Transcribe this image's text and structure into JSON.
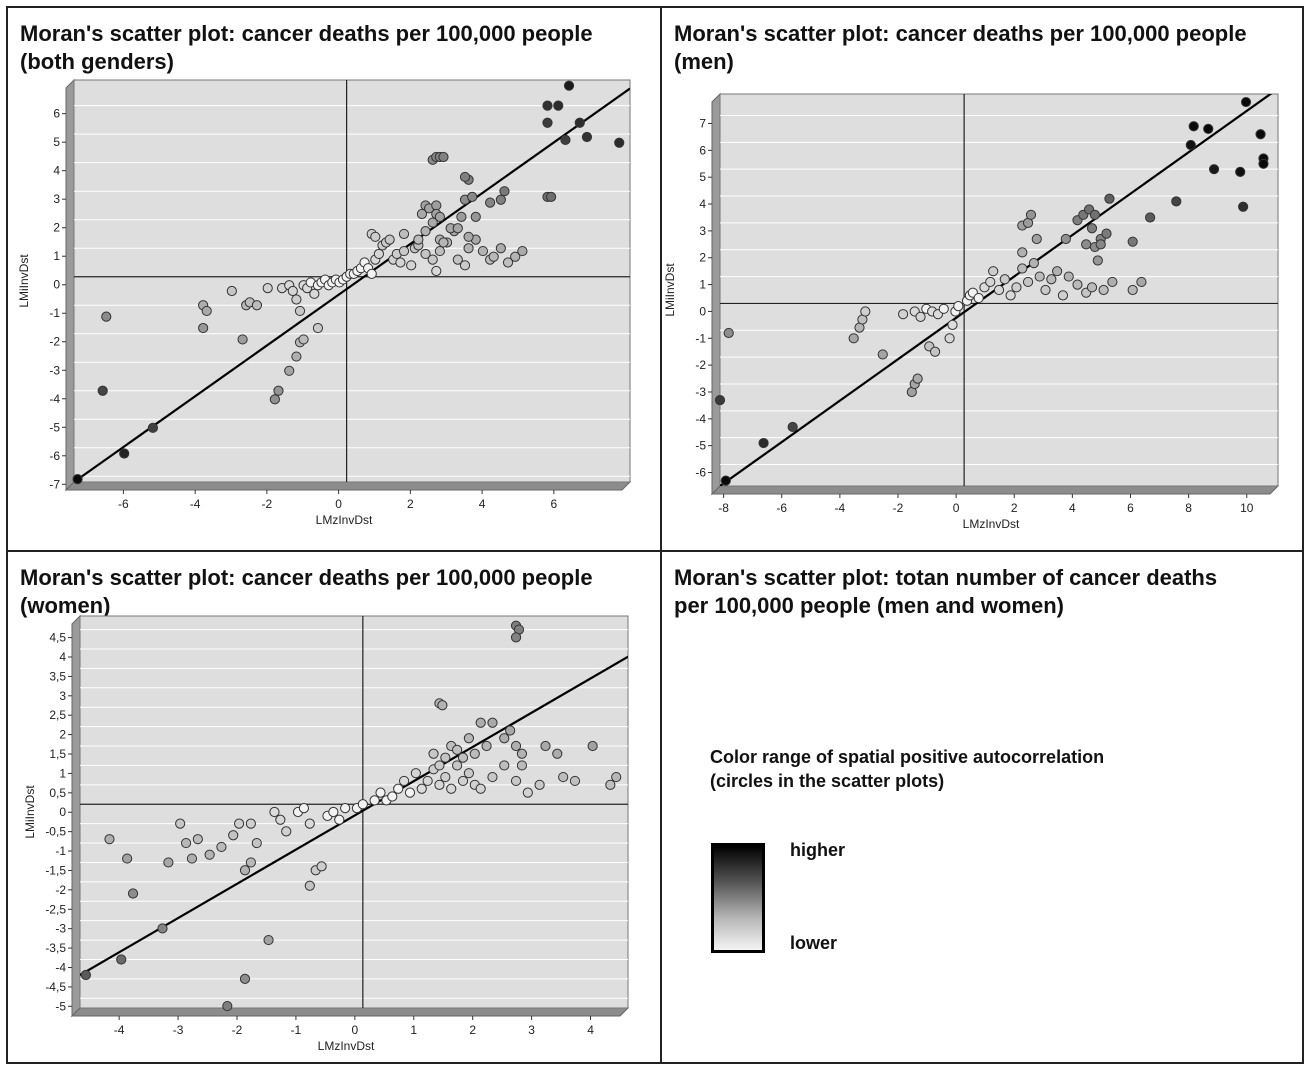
{
  "chart_data": [
    {
      "type": "scatter",
      "title": "Moran's scatter plot: cancer deaths per 100,000 people\n(both genders)",
      "xlabel": "LMzInvDst",
      "ylabel": "LMiInvDst",
      "xlim": [
        -7.6,
        7.9
      ],
      "ylim": [
        -7.2,
        6.9
      ],
      "xticks": [
        "-6",
        "-4",
        "-2",
        "0",
        "2",
        "4",
        "6"
      ],
      "xtick_values": [
        -6,
        -4,
        -2,
        0,
        2,
        4,
        6
      ],
      "yticks": [
        "6",
        "5",
        "4",
        "3",
        "2",
        "1",
        "0",
        "-1",
        "-2",
        "-3",
        "-4",
        "-5",
        "-6",
        "-7"
      ],
      "ytick_values": [
        6,
        5,
        4,
        3,
        2,
        1,
        0,
        -1,
        -2,
        -3,
        -4,
        -5,
        -6,
        -7
      ],
      "regression_line": [
        [
          -7.6,
          -7.2
        ],
        [
          7.9,
          6.6
        ]
      ],
      "points": [
        [
          -7.5,
          -7.1
        ],
        [
          -6.7,
          -1.4
        ],
        [
          -6.8,
          -4.0
        ],
        [
          -6.2,
          -6.2
        ],
        [
          -5.4,
          -5.3
        ],
        [
          -4.0,
          -1.0
        ],
        [
          -3.9,
          -1.2
        ],
        [
          -4.0,
          -1.8
        ],
        [
          -3.2,
          -0.5
        ],
        [
          -2.9,
          -2.2
        ],
        [
          -2.8,
          -1.0
        ],
        [
          -2.7,
          -0.9
        ],
        [
          -2.5,
          -1.0
        ],
        [
          -2.2,
          -0.4
        ],
        [
          -2.0,
          -4.3
        ],
        [
          -1.9,
          -4.0
        ],
        [
          -1.6,
          -3.3
        ],
        [
          -1.4,
          -2.8
        ],
        [
          -1.3,
          -2.3
        ],
        [
          -1.2,
          -2.2
        ],
        [
          -0.8,
          -1.8
        ],
        [
          -1.8,
          -0.4
        ],
        [
          -1.6,
          -0.3
        ],
        [
          -1.5,
          -0.5
        ],
        [
          -1.4,
          -0.8
        ],
        [
          -1.3,
          -1.2
        ],
        [
          -1.2,
          -0.3
        ],
        [
          -1.1,
          -0.4
        ],
        [
          -1.0,
          -0.2
        ],
        [
          -0.9,
          -0.6
        ],
        [
          -0.8,
          -0.3
        ],
        [
          -0.7,
          -0.2
        ],
        [
          -0.6,
          -0.1
        ],
        [
          -0.5,
          -0.3
        ],
        [
          -0.4,
          -0.2
        ],
        [
          -0.3,
          -0.1
        ],
        [
          -0.2,
          -0.2
        ],
        [
          -0.1,
          -0.1
        ],
        [
          0.0,
          0.0
        ],
        [
          0.1,
          0.1
        ],
        [
          0.2,
          0.1
        ],
        [
          0.3,
          0.2
        ],
        [
          0.4,
          0.3
        ],
        [
          0.5,
          0.5
        ],
        [
          0.6,
          0.3
        ],
        [
          0.7,
          0.1
        ],
        [
          0.8,
          0.6
        ],
        [
          0.9,
          0.8
        ],
        [
          1.0,
          1.1
        ],
        [
          1.1,
          1.2
        ],
        [
          1.2,
          1.3
        ],
        [
          1.3,
          0.6
        ],
        [
          1.4,
          0.8
        ],
        [
          1.5,
          0.5
        ],
        [
          1.6,
          0.9
        ],
        [
          1.8,
          0.4
        ],
        [
          1.9,
          1.0
        ],
        [
          2.0,
          1.1
        ],
        [
          2.2,
          0.8
        ],
        [
          2.4,
          0.6
        ],
        [
          2.5,
          0.2
        ],
        [
          2.6,
          0.9
        ],
        [
          2.8,
          1.2
        ],
        [
          3.0,
          1.6
        ],
        [
          3.1,
          0.6
        ],
        [
          3.3,
          0.4
        ],
        [
          3.4,
          1.0
        ],
        [
          3.6,
          1.3
        ],
        [
          3.8,
          0.9
        ],
        [
          4.0,
          0.6
        ],
        [
          4.1,
          0.7
        ],
        [
          4.3,
          1.0
        ],
        [
          4.5,
          0.5
        ],
        [
          4.7,
          0.7
        ],
        [
          4.9,
          0.9
        ],
        [
          0.7,
          1.5
        ],
        [
          0.8,
          1.4
        ],
        [
          1.6,
          1.5
        ],
        [
          2.0,
          1.3
        ],
        [
          2.2,
          1.6
        ],
        [
          2.4,
          1.9
        ],
        [
          2.6,
          1.3
        ],
        [
          2.7,
          1.2
        ],
        [
          2.9,
          1.7
        ],
        [
          3.1,
          1.7
        ],
        [
          3.4,
          1.4
        ],
        [
          2.1,
          2.2
        ],
        [
          2.2,
          2.5
        ],
        [
          2.3,
          2.4
        ],
        [
          2.5,
          2.5
        ],
        [
          2.5,
          2.2
        ],
        [
          2.6,
          2.1
        ],
        [
          3.2,
          2.1
        ],
        [
          3.3,
          2.7
        ],
        [
          3.5,
          2.8
        ],
        [
          3.6,
          2.1
        ],
        [
          4.0,
          2.6
        ],
        [
          4.3,
          2.7
        ],
        [
          4.4,
          3.0
        ],
        [
          3.4,
          3.4
        ],
        [
          3.3,
          3.5
        ],
        [
          2.4,
          4.1
        ],
        [
          2.5,
          4.2
        ],
        [
          2.6,
          4.2
        ],
        [
          2.7,
          4.2
        ],
        [
          5.6,
          2.8
        ],
        [
          5.7,
          2.8
        ],
        [
          5.6,
          5.4
        ],
        [
          5.6,
          6.0
        ],
        [
          5.9,
          6.0
        ],
        [
          6.1,
          4.8
        ],
        [
          6.2,
          6.7
        ],
        [
          6.5,
          5.4
        ],
        [
          6.7,
          4.9
        ],
        [
          7.6,
          4.7
        ]
      ]
    },
    {
      "type": "scatter",
      "title": "Moran's scatter plot: cancer deaths per 100,000 people\n(men)",
      "xlabel": "LMzInvDst",
      "ylabel": "LMiInvDst",
      "xlim": [
        -8.4,
        10.8
      ],
      "ylim": [
        -6.8,
        7.8
      ],
      "xticks": [
        "-8",
        "-6",
        "-4",
        "-2",
        "0",
        "2",
        "4",
        "6",
        "8",
        "10"
      ],
      "xtick_values": [
        -8,
        -6,
        -4,
        -2,
        0,
        2,
        4,
        6,
        8,
        10
      ],
      "yticks": [
        "7",
        "6",
        "5",
        "4",
        "3",
        "2",
        "1",
        "0",
        "-1",
        "-2",
        "-3",
        "-4",
        "-5",
        "-6"
      ],
      "ytick_values": [
        7,
        6,
        5,
        4,
        3,
        2,
        1,
        0,
        -1,
        -2,
        -3,
        -4,
        -5,
        -6
      ],
      "regression_line": [
        [
          -8.4,
          -6.8
        ],
        [
          10.8,
          8.0
        ]
      ],
      "points": [
        [
          -8.2,
          -6.6
        ],
        [
          -8.4,
          -3.6
        ],
        [
          -8.1,
          -1.1
        ],
        [
          -6.9,
          -5.2
        ],
        [
          -5.9,
          -4.6
        ],
        [
          -3.8,
          -1.3
        ],
        [
          -3.6,
          -0.9
        ],
        [
          -3.5,
          -0.6
        ],
        [
          -3.4,
          -0.3
        ],
        [
          -2.8,
          -1.9
        ],
        [
          -2.1,
          -0.4
        ],
        [
          -1.8,
          -3.3
        ],
        [
          -1.7,
          -3.0
        ],
        [
          -1.6,
          -2.8
        ],
        [
          -1.2,
          -1.6
        ],
        [
          -1.0,
          -1.8
        ],
        [
          -1.7,
          -0.3
        ],
        [
          -1.5,
          -0.5
        ],
        [
          -1.3,
          -0.2
        ],
        [
          -1.1,
          -0.3
        ],
        [
          -0.9,
          -0.4
        ],
        [
          -0.7,
          -0.2
        ],
        [
          -0.5,
          -1.3
        ],
        [
          -0.4,
          -0.8
        ],
        [
          -0.3,
          -0.3
        ],
        [
          -0.2,
          -0.1
        ],
        [
          0.1,
          0.1
        ],
        [
          0.2,
          0.3
        ],
        [
          0.3,
          0.4
        ],
        [
          0.5,
          0.2
        ],
        [
          0.7,
          0.6
        ],
        [
          0.9,
          0.8
        ],
        [
          1.0,
          1.2
        ],
        [
          1.2,
          0.5
        ],
        [
          1.4,
          0.9
        ],
        [
          1.6,
          0.3
        ],
        [
          1.8,
          0.6
        ],
        [
          2.0,
          1.3
        ],
        [
          2.2,
          0.8
        ],
        [
          2.4,
          1.5
        ],
        [
          2.6,
          1.0
        ],
        [
          2.8,
          0.5
        ],
        [
          3.0,
          0.9
        ],
        [
          3.2,
          1.2
        ],
        [
          3.4,
          0.3
        ],
        [
          3.6,
          1.0
        ],
        [
          3.9,
          0.7
        ],
        [
          4.2,
          0.4
        ],
        [
          4.4,
          0.6
        ],
        [
          4.6,
          1.6
        ],
        [
          4.8,
          0.5
        ],
        [
          5.1,
          0.8
        ],
        [
          5.8,
          0.5
        ],
        [
          6.1,
          0.8
        ],
        [
          2.0,
          1.9
        ],
        [
          2.5,
          2.4
        ],
        [
          3.5,
          2.4
        ],
        [
          4.2,
          2.2
        ],
        [
          4.4,
          2.8
        ],
        [
          4.7,
          2.4
        ],
        [
          4.9,
          2.6
        ],
        [
          2.0,
          2.9
        ],
        [
          2.2,
          3.0
        ],
        [
          2.3,
          3.3
        ],
        [
          3.9,
          3.1
        ],
        [
          4.1,
          3.3
        ],
        [
          4.3,
          3.5
        ],
        [
          4.5,
          3.3
        ],
        [
          5.0,
          3.9
        ],
        [
          4.5,
          2.1
        ],
        [
          4.7,
          2.2
        ],
        [
          5.8,
          2.3
        ],
        [
          6.4,
          3.2
        ],
        [
          7.3,
          3.8
        ],
        [
          7.8,
          5.9
        ],
        [
          7.9,
          6.6
        ],
        [
          8.4,
          6.5
        ],
        [
          8.6,
          5.0
        ],
        [
          9.5,
          4.9
        ],
        [
          9.6,
          3.6
        ],
        [
          9.7,
          7.5
        ],
        [
          10.2,
          6.3
        ],
        [
          10.3,
          5.4
        ],
        [
          10.3,
          5.2
        ]
      ]
    },
    {
      "type": "scatter",
      "title": "Moran's scatter plot: cancer deaths per 100,000 people\n(women)",
      "xlabel": "LMzInvDst",
      "ylabel": "LMiInvDst",
      "xlim": [
        -4.8,
        4.5
      ],
      "ylim": [
        -5.25,
        4.85
      ],
      "xticks": [
        "-4",
        "-3",
        "-2",
        "-1",
        "0",
        "1",
        "2",
        "3",
        "4"
      ],
      "xtick_values": [
        -4,
        -3,
        -2,
        -1,
        0,
        1,
        2,
        3,
        4
      ],
      "yticks": [
        "4,5",
        "4",
        "3,5",
        "3",
        "2,5",
        "2",
        "1,5",
        "1",
        "0,5",
        "0",
        "-0,5",
        "-1",
        "-1,5",
        "-2",
        "-2,5",
        "-3",
        "-3,5",
        "-4",
        "-4,5",
        "-5"
      ],
      "ytick_values": [
        4.5,
        4,
        3.5,
        3,
        2.5,
        2,
        1.5,
        1,
        0.5,
        0,
        -0.5,
        -1,
        -1.5,
        -2,
        -2.5,
        -3,
        -3.5,
        -4,
        -4.5,
        -5
      ],
      "regression_line": [
        [
          -4.8,
          -4.4
        ],
        [
          4.5,
          3.8
        ]
      ],
      "points": [
        [
          -4.7,
          -4.4
        ],
        [
          -4.3,
          -0.9
        ],
        [
          -4.1,
          -4.0
        ],
        [
          -4.0,
          -1.4
        ],
        [
          -3.9,
          -2.3
        ],
        [
          -3.4,
          -3.2
        ],
        [
          -3.3,
          -1.5
        ],
        [
          -3.1,
          -0.5
        ],
        [
          -3.0,
          -1.0
        ],
        [
          -2.9,
          -1.4
        ],
        [
          -2.8,
          -0.9
        ],
        [
          -2.6,
          -1.3
        ],
        [
          -2.4,
          -1.1
        ],
        [
          -2.3,
          -5.2
        ],
        [
          -2.2,
          -0.8
        ],
        [
          -2.1,
          -0.5
        ],
        [
          -2.0,
          -4.5
        ],
        [
          -2.0,
          -1.7
        ],
        [
          -1.9,
          -1.5
        ],
        [
          -1.9,
          -0.5
        ],
        [
          -1.8,
          -1.0
        ],
        [
          -1.6,
          -3.5
        ],
        [
          -1.5,
          -0.2
        ],
        [
          -1.4,
          -0.4
        ],
        [
          -1.3,
          -0.7
        ],
        [
          -1.1,
          -0.2
        ],
        [
          -1.0,
          -0.1
        ],
        [
          -0.9,
          -0.5
        ],
        [
          -0.9,
          -2.1
        ],
        [
          -0.8,
          -1.7
        ],
        [
          -0.7,
          -1.6
        ],
        [
          -0.6,
          -0.3
        ],
        [
          -0.5,
          -0.2
        ],
        [
          -0.4,
          -0.4
        ],
        [
          -0.3,
          -0.1
        ],
        [
          -0.1,
          -0.1
        ],
        [
          0.0,
          0.0
        ],
        [
          0.2,
          0.1
        ],
        [
          0.3,
          0.3
        ],
        [
          0.4,
          0.1
        ],
        [
          0.5,
          0.2
        ],
        [
          0.6,
          0.4
        ],
        [
          0.7,
          0.6
        ],
        [
          0.8,
          0.3
        ],
        [
          0.9,
          0.8
        ],
        [
          1.0,
          0.4
        ],
        [
          1.1,
          0.6
        ],
        [
          1.2,
          0.9
        ],
        [
          1.3,
          0.5
        ],
        [
          1.4,
          0.7
        ],
        [
          1.5,
          0.4
        ],
        [
          1.6,
          1.0
        ],
        [
          1.7,
          0.6
        ],
        [
          1.8,
          0.8
        ],
        [
          1.9,
          0.5
        ],
        [
          2.0,
          0.4
        ],
        [
          2.2,
          0.7
        ],
        [
          2.4,
          1.0
        ],
        [
          2.6,
          0.6
        ],
        [
          2.7,
          1.0
        ],
        [
          2.8,
          0.3
        ],
        [
          3.0,
          0.5
        ],
        [
          3.4,
          0.7
        ],
        [
          3.6,
          0.6
        ],
        [
          4.2,
          0.5
        ],
        [
          4.3,
          0.7
        ],
        [
          1.2,
          1.3
        ],
        [
          1.3,
          1.0
        ],
        [
          1.4,
          1.2
        ],
        [
          1.5,
          1.5
        ],
        [
          1.6,
          1.4
        ],
        [
          1.7,
          1.2
        ],
        [
          1.8,
          1.7
        ],
        [
          1.9,
          1.3
        ],
        [
          2.0,
          2.1
        ],
        [
          2.1,
          1.5
        ],
        [
          2.2,
          2.1
        ],
        [
          2.4,
          1.7
        ],
        [
          2.5,
          1.9
        ],
        [
          2.6,
          1.5
        ],
        [
          2.7,
          1.3
        ],
        [
          3.1,
          1.5
        ],
        [
          3.3,
          1.3
        ],
        [
          3.9,
          1.5
        ],
        [
          1.3,
          2.6
        ],
        [
          1.35,
          2.55
        ],
        [
          2.6,
          4.6
        ],
        [
          2.65,
          4.5
        ],
        [
          2.6,
          4.3
        ]
      ]
    }
  ],
  "panel4": {
    "title": "Moran's scatter plot: totan number of cancer deaths\nper 100,000 people (men and women)",
    "legend": {
      "title": "Color range of spatial positive autocorrelation\n(circles in the scatter plots)",
      "high_label": "higher",
      "low_label": "lower"
    }
  }
}
